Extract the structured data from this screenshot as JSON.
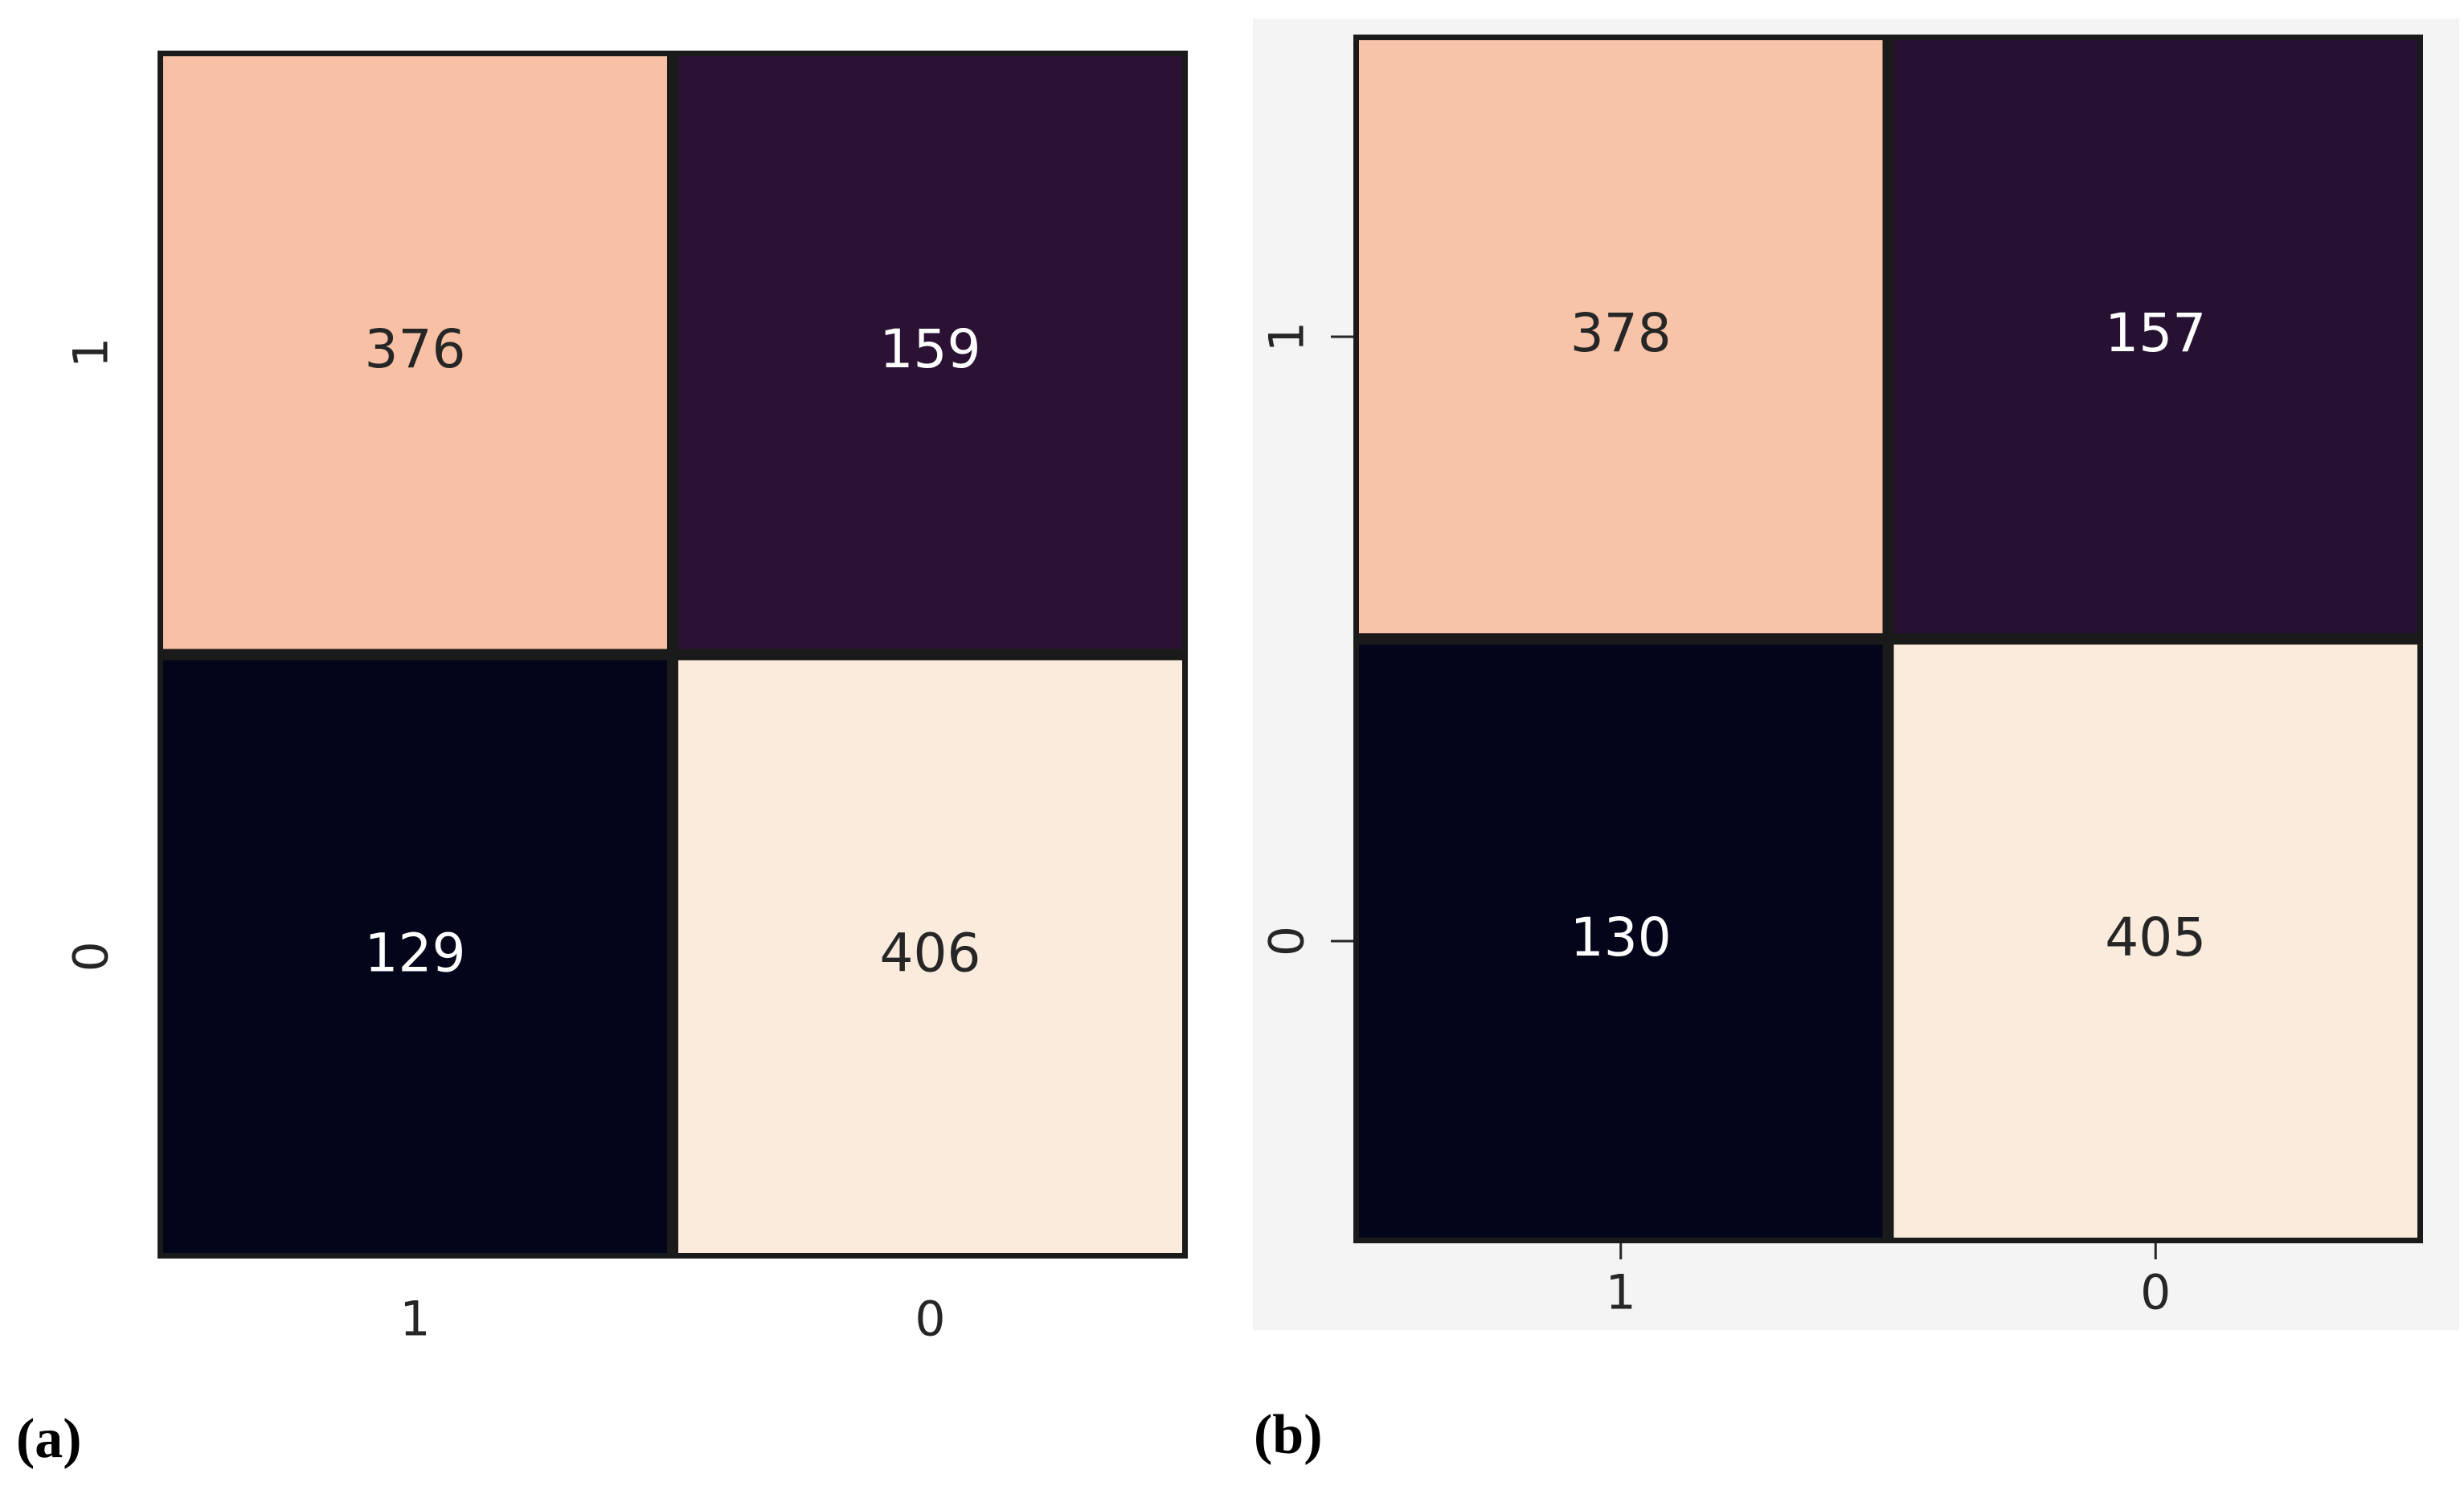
{
  "chart_data": [
    {
      "type": "heatmap",
      "caption": "(a)",
      "x_categories": [
        "1",
        "0"
      ],
      "y_categories": [
        "1",
        "0"
      ],
      "values": [
        [
          376,
          159
        ],
        [
          129,
          406
        ]
      ],
      "colormap": [
        "#03051a",
        "#4c1d4b",
        "#a11a5b",
        "#e83f3f",
        "#f69c73",
        "#faebdd"
      ],
      "tick_marks": false,
      "background": "#ffffff"
    },
    {
      "type": "heatmap",
      "caption": "(b)",
      "x_categories": [
        "1",
        "0"
      ],
      "y_categories": [
        "1",
        "0"
      ],
      "values": [
        [
          378,
          157
        ],
        [
          130,
          405
        ]
      ],
      "colormap": [
        "#03051a",
        "#4c1d4b",
        "#a11a5b",
        "#e83f3f",
        "#f69c73",
        "#faebdd"
      ],
      "tick_marks": true,
      "background": "#f4f4f4"
    }
  ]
}
